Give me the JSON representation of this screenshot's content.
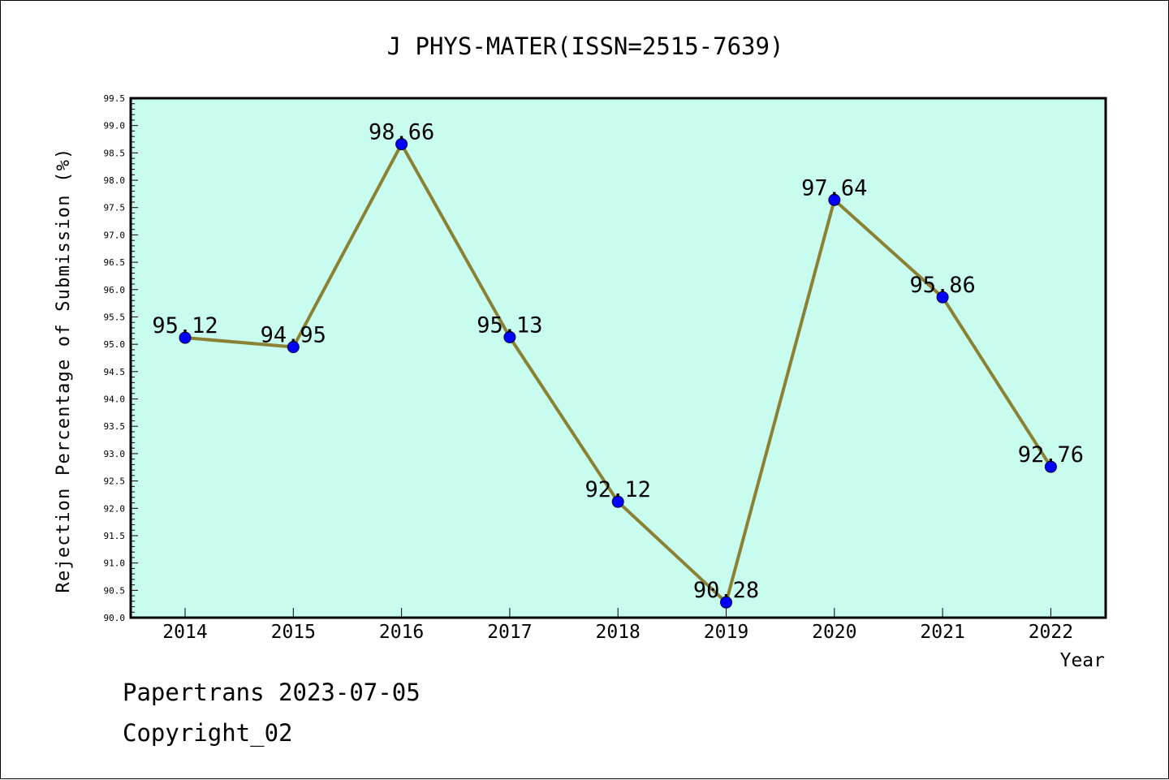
{
  "colors": {
    "plot_background": "#c8fcee",
    "line": "#8b8134",
    "marker": "#0000ff",
    "axis": "#000000"
  },
  "chart_data": {
    "type": "line",
    "title": "J PHYS-MATER(ISSN=2515-7639)",
    "xlabel": "Year",
    "ylabel": "Rejection Percentage of Submission (%)",
    "x": [
      "2014",
      "2015",
      "2016",
      "2017",
      "2018",
      "2019",
      "2020",
      "2021",
      "2022"
    ],
    "series": [
      {
        "values": [
          95.12,
          94.95,
          98.66,
          95.13,
          92.12,
          90.28,
          97.64,
          95.86,
          92.76
        ],
        "labels": [
          "95.12",
          "94.95",
          "98.66",
          "95.13",
          "92.12",
          "90.28",
          "97.64",
          "95.86",
          "92.76"
        ]
      }
    ],
    "ylim": [
      90.0,
      99.5
    ],
    "yticks": [
      "90.0",
      "90.5",
      "91.0",
      "91.5",
      "92.0",
      "92.5",
      "93.0",
      "93.5",
      "94.0",
      "94.5",
      "95.0",
      "95.5",
      "96.0",
      "96.5",
      "97.0",
      "97.5",
      "98.0",
      "98.5",
      "99.0",
      "99.5"
    ],
    "grid": false,
    "legend": "none"
  },
  "footer": {
    "line1": "Papertrans 2023-07-05",
    "line2": "Copyright_02"
  }
}
